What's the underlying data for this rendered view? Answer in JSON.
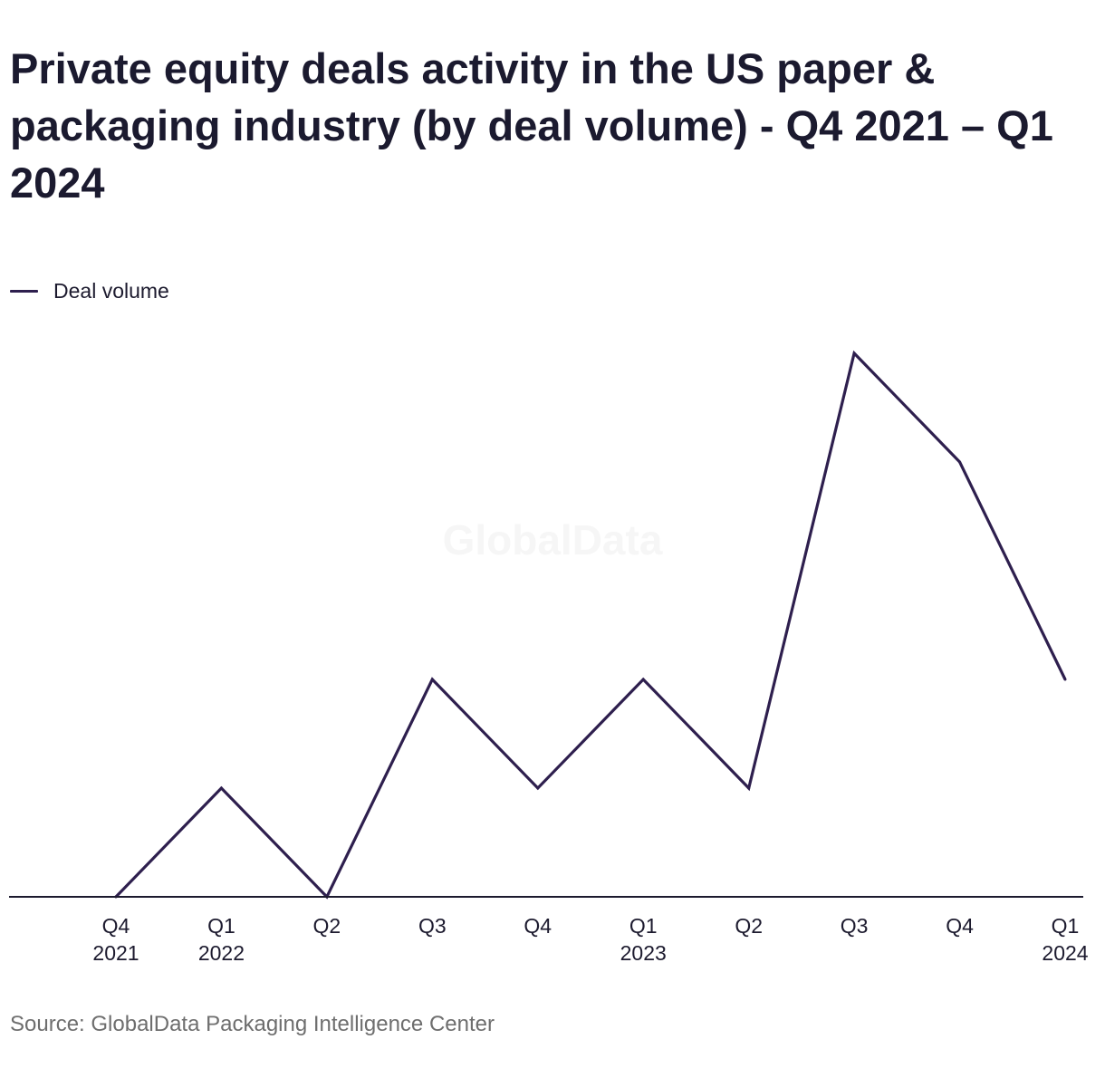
{
  "chart_data": {
    "type": "line",
    "title": "Private equity deals activity in the US paper & packaging industry (by deal volume) - Q4 2021 – Q1 2024",
    "categories": [
      [
        "Q4",
        "2021"
      ],
      [
        "Q1",
        "2022"
      ],
      [
        "Q2",
        ""
      ],
      [
        "Q3",
        ""
      ],
      [
        "Q4",
        ""
      ],
      [
        "Q1",
        "2023"
      ],
      [
        "Q2",
        ""
      ],
      [
        "Q3",
        ""
      ],
      [
        "Q4",
        ""
      ],
      [
        "Q1",
        "2024"
      ]
    ],
    "series": [
      {
        "name": "Deal volume",
        "values": [
          0,
          1,
          0,
          2,
          1,
          2,
          1,
          5,
          4,
          2
        ],
        "color": "#2e1f4e"
      }
    ],
    "ylim": [
      0,
      5
    ],
    "grid": false,
    "legend_position": "top-left"
  },
  "watermark": "GlobalData",
  "source": "Source: GlobalData Packaging Intelligence Center"
}
